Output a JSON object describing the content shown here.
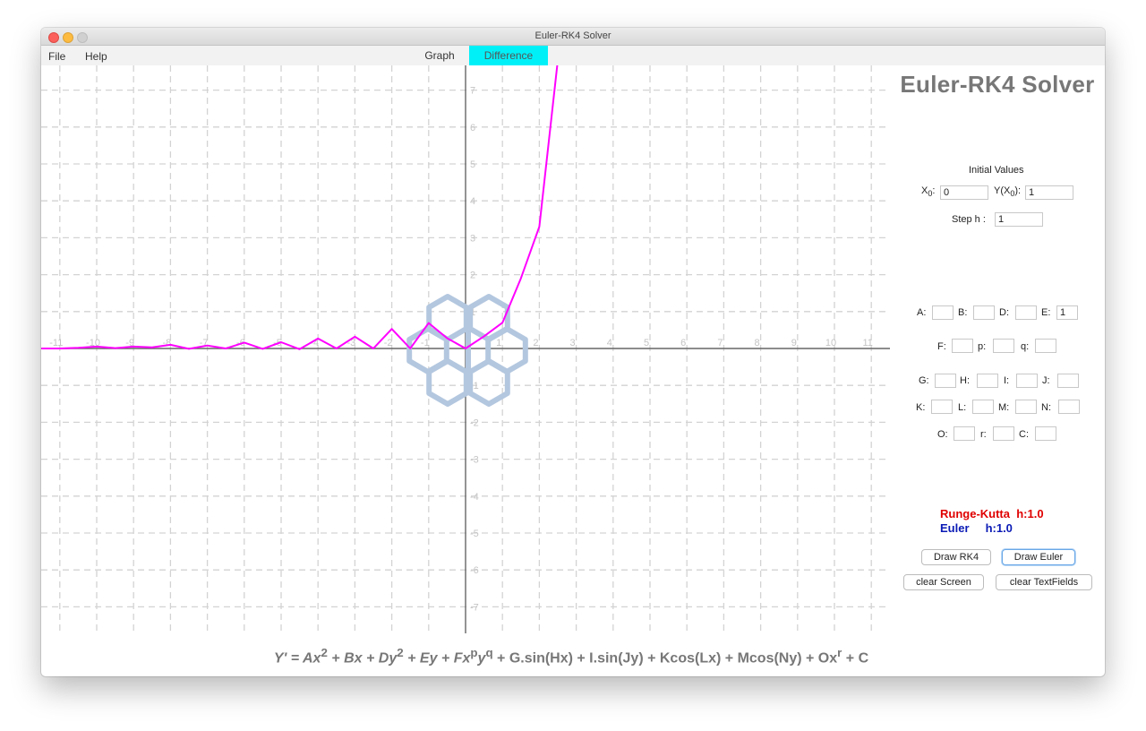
{
  "window": {
    "title": "Euler-RK4 Solver"
  },
  "menu": {
    "file": "File",
    "help": "Help"
  },
  "tabs": {
    "graph": "Graph",
    "difference": "Difference"
  },
  "app_title": "Euler-RK4 Solver",
  "initial": {
    "heading": "Initial Values",
    "x0_label": "X",
    "x0_sub": "0",
    "x0_colon": ":",
    "x0_value": "0",
    "y0_label": "Y(X",
    "y0_sub": "0",
    "y0_close": "):",
    "y0_value": "1",
    "step_label": "Step  h :",
    "step_value": "1"
  },
  "coefficients": [
    {
      "label": "A:",
      "value": ""
    },
    {
      "label": "B:",
      "value": ""
    },
    {
      "label": "D:",
      "value": ""
    },
    {
      "label": "E:",
      "value": "1"
    },
    {
      "label": "F:",
      "value": ""
    },
    {
      "label": "p:",
      "value": ""
    },
    {
      "label": "q:",
      "value": ""
    },
    {
      "label": "G:",
      "value": ""
    },
    {
      "label": "H:",
      "value": ""
    },
    {
      "label": "I:",
      "value": ""
    },
    {
      "label": "J:",
      "value": ""
    },
    {
      "label": "K:",
      "value": ""
    },
    {
      "label": "L:",
      "value": ""
    },
    {
      "label": "M:",
      "value": ""
    },
    {
      "label": "N:",
      "value": ""
    },
    {
      "label": "O:",
      "value": ""
    },
    {
      "label": "r:",
      "value": ""
    },
    {
      "label": "C:",
      "value": ""
    }
  ],
  "legend": {
    "rk4": "Runge-Kutta  h:1.0",
    "euler": "Euler     h:1.0"
  },
  "buttons": {
    "draw_rk4": "Draw RK4",
    "draw_euler": "Draw Euler",
    "clear_screen": "clear Screen",
    "clear_textfields": "clear TextFields"
  },
  "formula": {
    "prefix": "Y' = Ax",
    "sup1": "2",
    "part2": " + Bx + Dy",
    "sup2": "2",
    "part3": " + Ey + Fx",
    "sup3": "p",
    "part4": "y",
    "sup4": "q",
    "part5": " + G.sin(Hx) + I.sin(Jy) + Kcos(Lx) + Mcos(Ny) + Ox",
    "sup5": "r",
    "part6": " + C"
  },
  "colors": {
    "curve": "#ff00ff",
    "rk4": "#e00000",
    "euler": "#0a1ab5",
    "active_tab": "#00f0f8",
    "logo": "#b3c7df"
  },
  "icons": {
    "logo": "cube-cluster-logo"
  },
  "chart_data": {
    "type": "line",
    "xlim": [
      -11.5,
      11.5
    ],
    "ylim": [
      -7.7,
      7.7
    ],
    "x_ticks": [
      -11,
      -10,
      -9,
      -8,
      -7,
      -6,
      -5,
      -4,
      -3,
      -2,
      -1,
      1,
      2,
      3,
      4,
      5,
      6,
      7,
      8,
      9,
      10,
      11
    ],
    "y_ticks": [
      -7,
      -6,
      -5,
      -4,
      -3,
      -2,
      -1,
      1,
      2,
      3,
      4,
      5,
      6,
      7
    ],
    "grid": true,
    "series": [
      {
        "x": [
          -11.5,
          -11,
          -10.5,
          -10,
          -9.5,
          -9,
          -8.5,
          -8,
          -7.5,
          -7,
          -6.5,
          -6,
          -5.5,
          -5,
          -4.5,
          -4,
          -3.5,
          -3,
          -2.5,
          -2,
          -1.5,
          -1,
          -0.5,
          0,
          0.5,
          1,
          1.5,
          2,
          2.5
        ],
        "y": [
          0,
          0,
          0.02,
          0.05,
          0.01,
          0.05,
          0.03,
          0.1,
          -0.01,
          0.08,
          0,
          0.16,
          -0.01,
          0.17,
          -0.02,
          0.27,
          0,
          0.32,
          0,
          0.53,
          0,
          0.69,
          0.28,
          0,
          0.33,
          0.7,
          1.9,
          3.3,
          7.8
        ]
      }
    ]
  }
}
